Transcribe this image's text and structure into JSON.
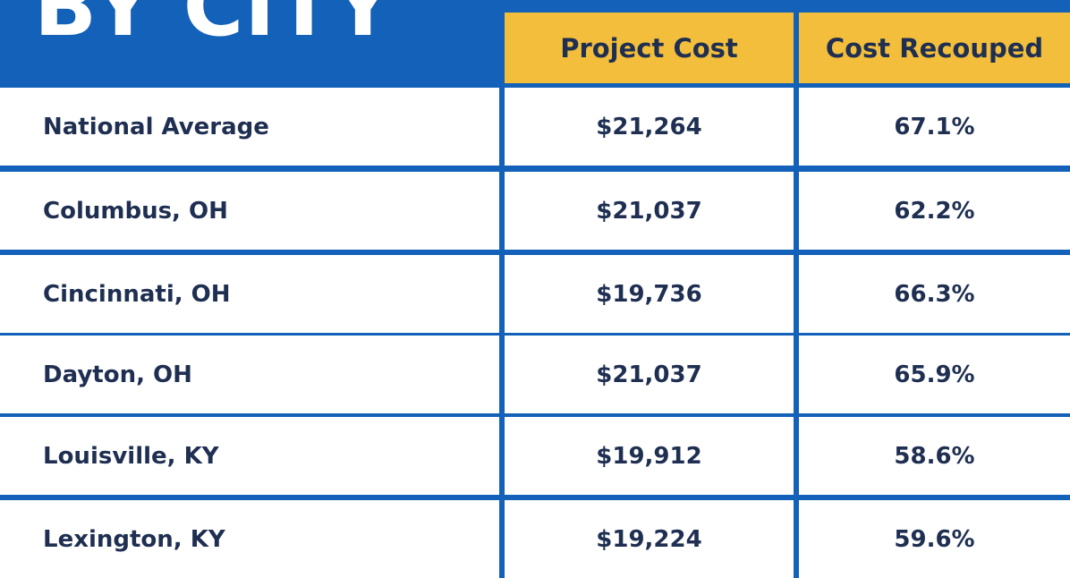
{
  "title": "BY CITY",
  "colors": {
    "background": "#1361b8",
    "header": "#f2be3b",
    "text": "#1f2f52",
    "cell": "#ffffff"
  },
  "chart_data": {
    "type": "table",
    "title": "BY CITY",
    "columns": [
      "",
      "Project Cost",
      "Cost Recouped"
    ],
    "rows": [
      {
        "city": "National Average",
        "project_cost": "$21,264",
        "cost_recouped": "67.1%"
      },
      {
        "city": "Columbus, OH",
        "project_cost": "$21,037",
        "cost_recouped": "62.2%"
      },
      {
        "city": "Cincinnati, OH",
        "project_cost": "$19,736",
        "cost_recouped": "66.3%"
      },
      {
        "city": "Dayton, OH",
        "project_cost": "$21,037",
        "cost_recouped": "65.9%"
      },
      {
        "city": "Louisville, KY",
        "project_cost": "$19,912",
        "cost_recouped": "58.6%"
      },
      {
        "city": "Lexington, KY",
        "project_cost": "$19,224",
        "cost_recouped": "59.6%"
      }
    ]
  }
}
